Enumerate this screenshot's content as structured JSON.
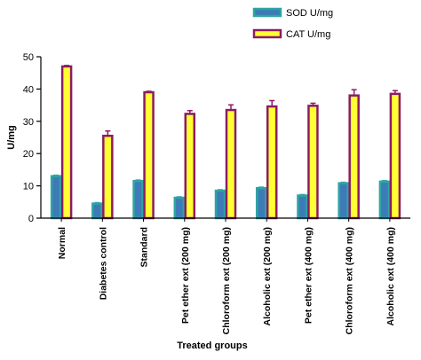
{
  "chart_data": {
    "type": "bar",
    "title": "",
    "xlabel": "Treated groups",
    "ylabel": "U/mg",
    "ylim": [
      0,
      50
    ],
    "yticks": [
      0,
      10,
      20,
      30,
      40,
      50
    ],
    "grid": false,
    "legend_position": "top-right",
    "categories": [
      "Normal",
      "Diabetes control",
      "Standard",
      "Pet ether ext (200 mg)",
      "Chloroform ext (200 mg)",
      "Alcoholic ext (200 mg)",
      "Pet ether ext (400 mg)",
      "Chloroform ext (400 mg)",
      "Alcoholic ext (400 mg)"
    ],
    "series": [
      {
        "name": "SOD U/mg",
        "fill": "#3d7bb8",
        "stroke": "#2ea5a0",
        "values": [
          13,
          4.5,
          11.5,
          6.3,
          8.5,
          9.3,
          7,
          10.8,
          11.3
        ],
        "errors": [
          0.3,
          0.3,
          0.3,
          0.3,
          0.3,
          0.3,
          0.3,
          0.3,
          0.3
        ]
      },
      {
        "name": "CAT U/mg",
        "fill": "#ffff33",
        "stroke": "#8b1c62",
        "values": [
          47,
          25.5,
          39,
          32.3,
          33.5,
          34.6,
          34.8,
          38,
          38.5
        ],
        "errors": [
          0.3,
          1.5,
          0.3,
          1.0,
          1.6,
          1.8,
          0.8,
          1.8,
          1.0
        ]
      }
    ]
  }
}
